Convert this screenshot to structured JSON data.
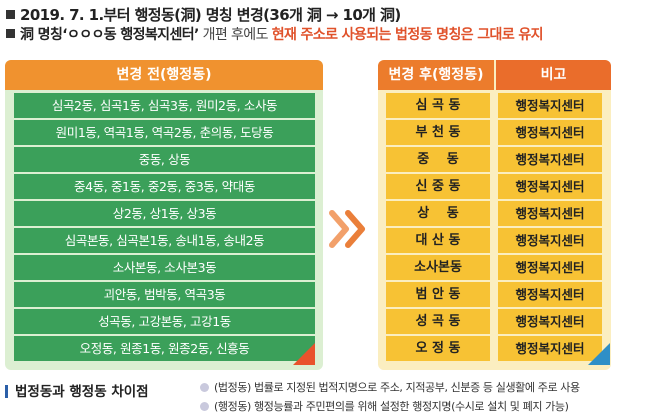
{
  "notice": {
    "line1": "2019. 7. 1.부터 행정동(洞) 명칭 변경(36개 洞 → 10개 洞)",
    "line2_start": "洞 명칭‘ㅇㅇㅇ동 행정복지센터’",
    "line2_mid": " 개편 후에도 ",
    "line2_highlight": "현재 주소로 사용되는 법정동 명칭은 그대로 유지"
  },
  "table": {
    "header_before": "변경 전(행정동)",
    "header_after": "변경 후(행정동)",
    "header_note": "비고",
    "rows": [
      {
        "before": "심곡2동, 심곡1동, 심곡3동, 원미2동, 소사동",
        "after": "심 곡 동",
        "note": "행정복지센터"
      },
      {
        "before": "원미1동, 역곡1동, 역곡2동, 춘의동, 도당동",
        "after": "부 천 동",
        "note": "행정복지센터"
      },
      {
        "before": "중동, 상동",
        "after": "중　 동",
        "note": "행정복지센터"
      },
      {
        "before": "중4동, 중1동, 중2동, 중3동, 약대동",
        "after": "신 중 동",
        "note": "행정복지센터"
      },
      {
        "before": "상2동, 상1동, 상3동",
        "after": "상　 동",
        "note": "행정복지센터"
      },
      {
        "before": "심곡본동, 심곡본1동, 송내1동, 송내2동",
        "after": "대 산 동",
        "note": "행정복지센터"
      },
      {
        "before": "소사본동, 소사본3동",
        "after": "소사본동",
        "note": "행정복지센터"
      },
      {
        "before": "괴안동, 범박동, 역곡3동",
        "after": "범 안 동",
        "note": "행정복지센터"
      },
      {
        "before": "성곡동, 고강본동, 고강1동",
        "after": "성 곡 동",
        "note": "행정복지센터"
      },
      {
        "before": "오정동, 원종1동, 원종2동, 신흥동",
        "after": "오 정 동",
        "note": "행정복지센터"
      }
    ]
  },
  "legend": {
    "title": "법정동과 행정동 차이점",
    "line1": "(법정동) 법률로 지정된 법적지명으로 주소, 지적공부, 신분증 등 실생활에 주로 사용",
    "line2": "(행정동) 행정능률과 주민편의를 위해 설정한 행정지명(수시로 설치 및 폐지 가능)"
  },
  "icons": {
    "arrow": "double-chevron-right-icon",
    "bullet": "square-bullet-icon",
    "legend_dot": "circle-bullet-icon"
  },
  "colors": {
    "orange_header": "#f0922f",
    "green_row": "#3ba05a",
    "yellow_row": "#f7c234",
    "highlight_text": "#e0522b",
    "accent_blue": "#2e8fc7"
  }
}
